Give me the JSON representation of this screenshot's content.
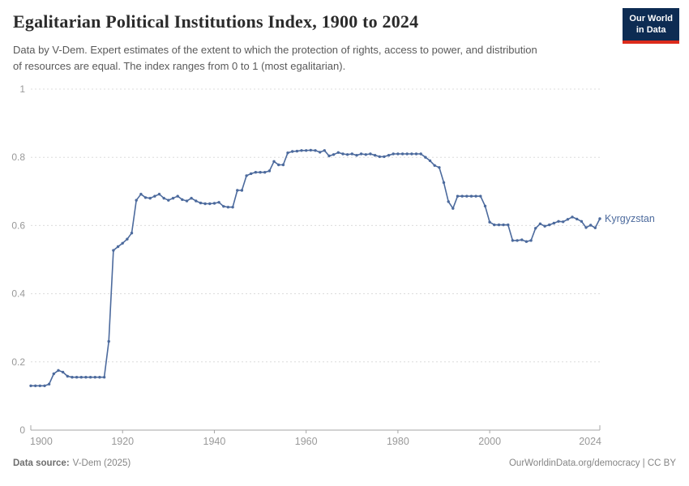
{
  "header": {
    "title": "Egalitarian Political Institutions Index, 1900 to 2024",
    "subtitle": "Data by V-Dem. Expert estimates of the extent to which the protection of rights, access to power, and distribution of resources are equal. The index ranges from 0 to 1 (most egalitarian).",
    "logo": {
      "line1": "Our World",
      "line2": "in Data"
    }
  },
  "chart_data": {
    "type": "line",
    "title": "Egalitarian Political Institutions Index, 1900 to 2024",
    "xlabel": "",
    "ylabel": "",
    "xlim": [
      1900,
      2024
    ],
    "ylim": [
      0,
      1
    ],
    "x_ticks": [
      1900,
      1920,
      1940,
      1960,
      1980,
      2000,
      2024
    ],
    "y_ticks": [
      0,
      0.2,
      0.4,
      0.6,
      0.8,
      1
    ],
    "grid": "horizontal-dashed",
    "legend_position": "end-of-line-label",
    "entity_label": "Kyrgyzstan",
    "series": [
      {
        "name": "Kyrgyzstan",
        "color": "#4c6a9d",
        "x": [
          1900,
          1901,
          1902,
          1903,
          1904,
          1905,
          1906,
          1907,
          1908,
          1909,
          1910,
          1911,
          1912,
          1913,
          1914,
          1915,
          1916,
          1917,
          1918,
          1919,
          1920,
          1921,
          1922,
          1923,
          1924,
          1925,
          1926,
          1927,
          1928,
          1929,
          1930,
          1931,
          1932,
          1933,
          1934,
          1935,
          1936,
          1937,
          1938,
          1939,
          1940,
          1941,
          1942,
          1943,
          1944,
          1945,
          1946,
          1947,
          1948,
          1949,
          1950,
          1951,
          1952,
          1953,
          1954,
          1955,
          1956,
          1957,
          1958,
          1959,
          1960,
          1961,
          1962,
          1963,
          1964,
          1965,
          1966,
          1967,
          1968,
          1969,
          1970,
          1971,
          1972,
          1973,
          1974,
          1975,
          1976,
          1977,
          1978,
          1979,
          1980,
          1981,
          1982,
          1983,
          1984,
          1985,
          1986,
          1987,
          1988,
          1989,
          1990,
          1991,
          1992,
          1993,
          1994,
          1995,
          1996,
          1997,
          1998,
          1999,
          2000,
          2001,
          2002,
          2003,
          2004,
          2005,
          2006,
          2007,
          2008,
          2009,
          2010,
          2011,
          2012,
          2013,
          2014,
          2015,
          2016,
          2017,
          2018,
          2019,
          2020,
          2021,
          2022,
          2023,
          2024
        ],
        "values": [
          0.13,
          0.13,
          0.13,
          0.13,
          0.135,
          0.165,
          0.175,
          0.17,
          0.158,
          0.155,
          0.155,
          0.155,
          0.155,
          0.155,
          0.155,
          0.155,
          0.155,
          0.26,
          0.527,
          0.538,
          0.548,
          0.56,
          0.578,
          0.674,
          0.692,
          0.682,
          0.68,
          0.686,
          0.692,
          0.68,
          0.674,
          0.68,
          0.686,
          0.676,
          0.672,
          0.68,
          0.672,
          0.666,
          0.664,
          0.664,
          0.665,
          0.668,
          0.656,
          0.654,
          0.654,
          0.703,
          0.703,
          0.746,
          0.752,
          0.756,
          0.756,
          0.756,
          0.76,
          0.788,
          0.778,
          0.778,
          0.813,
          0.817,
          0.818,
          0.82,
          0.82,
          0.821,
          0.82,
          0.815,
          0.82,
          0.804,
          0.808,
          0.814,
          0.81,
          0.808,
          0.81,
          0.806,
          0.81,
          0.808,
          0.81,
          0.806,
          0.802,
          0.802,
          0.806,
          0.81,
          0.81,
          0.81,
          0.81,
          0.81,
          0.81,
          0.81,
          0.8,
          0.79,
          0.776,
          0.77,
          0.726,
          0.67,
          0.65,
          0.686,
          0.686,
          0.686,
          0.686,
          0.686,
          0.686,
          0.657,
          0.61,
          0.602,
          0.602,
          0.602,
          0.602,
          0.556,
          0.556,
          0.558,
          0.553,
          0.556,
          0.592,
          0.605,
          0.598,
          0.602,
          0.607,
          0.612,
          0.611,
          0.618,
          0.625,
          0.619,
          0.612,
          0.594,
          0.601,
          0.593,
          0.62
        ]
      }
    ]
  },
  "footer": {
    "datasource_label": "Data source:",
    "datasource_value": "V-Dem (2025)",
    "credit": "OurWorldinData.org/democracy | CC BY"
  },
  "colors": {
    "line": "#4c6a9d",
    "grid": "#dcdcdc",
    "axis": "#a5a5a5",
    "tick_text": "#999999",
    "logo_bg": "#0d2c53",
    "logo_accent": "#dc2b1c"
  }
}
